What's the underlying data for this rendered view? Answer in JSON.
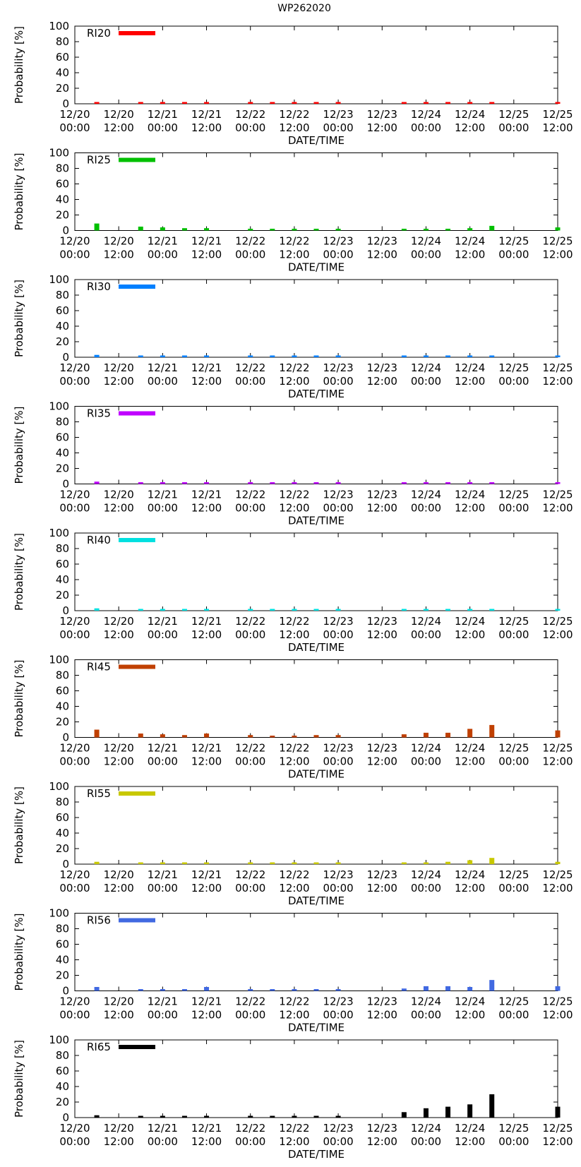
{
  "title": "WP262020",
  "x_tick_labels": [
    {
      "date": "12/20",
      "time": "00:00"
    },
    {
      "date": "12/20",
      "time": "12:00"
    },
    {
      "date": "12/21",
      "time": "00:00"
    },
    {
      "date": "12/21",
      "time": "12:00"
    },
    {
      "date": "12/22",
      "time": "00:00"
    },
    {
      "date": "12/22",
      "time": "12:00"
    },
    {
      "date": "12/23",
      "time": "00:00"
    },
    {
      "date": "12/23",
      "time": "12:00"
    },
    {
      "date": "12/24",
      "time": "00:00"
    },
    {
      "date": "12/24",
      "time": "12:00"
    },
    {
      "date": "12/25",
      "time": "00:00"
    },
    {
      "date": "12/25",
      "time": "12:00"
    }
  ],
  "chart_data": [
    {
      "type": "bar",
      "name": "RI20",
      "color": "#ff0000",
      "title": "RI20",
      "xlabel": "DATE/TIME",
      "ylabel": "Probability [%]",
      "ylim": [
        0,
        100
      ],
      "yticks": [
        0,
        20,
        40,
        60,
        80,
        100
      ],
      "x_hours": [
        6,
        18,
        24,
        30,
        36,
        48,
        54,
        60,
        66,
        72,
        90,
        96,
        102,
        108,
        114,
        132
      ],
      "values": [
        1,
        1,
        1,
        0,
        1,
        0,
        0,
        0,
        0,
        0,
        0,
        0,
        0,
        0,
        0,
        0
      ]
    },
    {
      "type": "bar",
      "name": "RI25",
      "color": "#00c000",
      "title": "RI25",
      "xlabel": "DATE/TIME",
      "ylabel": "Probability [%]",
      "ylim": [
        0,
        100
      ],
      "yticks": [
        0,
        20,
        40,
        60,
        80,
        100
      ],
      "x_hours": [
        6,
        18,
        24,
        30,
        36,
        48,
        54,
        60,
        66,
        72,
        90,
        96,
        102,
        108,
        114,
        132
      ],
      "values": [
        9,
        5,
        4,
        3,
        3,
        1,
        1,
        1,
        1,
        1,
        2,
        2,
        2,
        3,
        6,
        4
      ]
    },
    {
      "type": "bar",
      "name": "RI30",
      "color": "#0080ff",
      "title": "RI30",
      "xlabel": "DATE/TIME",
      "ylabel": "Probability [%]",
      "ylim": [
        0,
        100
      ],
      "yticks": [
        0,
        20,
        40,
        60,
        80,
        100
      ],
      "x_hours": [
        6,
        18,
        24,
        30,
        36,
        48,
        54,
        60,
        66,
        72,
        90,
        96,
        102,
        108,
        114,
        132
      ],
      "values": [
        3,
        1,
        1,
        1,
        1,
        0,
        0,
        0,
        0,
        0,
        0,
        1,
        0,
        1,
        2,
        2
      ]
    },
    {
      "type": "bar",
      "name": "RI35",
      "color": "#c000ff",
      "title": "RI35",
      "xlabel": "DATE/TIME",
      "ylabel": "Probability [%]",
      "ylim": [
        0,
        100
      ],
      "yticks": [
        0,
        20,
        40,
        60,
        80,
        100
      ],
      "x_hours": [
        6,
        18,
        24,
        30,
        36,
        48,
        54,
        60,
        66,
        72,
        90,
        96,
        102,
        108,
        114,
        132
      ],
      "values": [
        3,
        1,
        1,
        0,
        1,
        0,
        0,
        0,
        0,
        0,
        0,
        0,
        0,
        1,
        1,
        1
      ]
    },
    {
      "type": "bar",
      "name": "RI40",
      "color": "#00e0e0",
      "title": "RI40",
      "xlabel": "DATE/TIME",
      "ylabel": "Probability [%]",
      "ylim": [
        0,
        100
      ],
      "yticks": [
        0,
        20,
        40,
        60,
        80,
        100
      ],
      "x_hours": [
        6,
        18,
        24,
        30,
        36,
        48,
        54,
        60,
        66,
        72,
        90,
        96,
        102,
        108,
        114,
        132
      ],
      "values": [
        3,
        1,
        1,
        0,
        0,
        0,
        0,
        0,
        0,
        0,
        0,
        0,
        0,
        0,
        1,
        1
      ]
    },
    {
      "type": "bar",
      "name": "RI45",
      "color": "#c04000",
      "title": "RI45",
      "xlabel": "DATE/TIME",
      "ylabel": "Probability [%]",
      "ylim": [
        0,
        100
      ],
      "yticks": [
        0,
        20,
        40,
        60,
        80,
        100
      ],
      "x_hours": [
        6,
        18,
        24,
        30,
        36,
        48,
        54,
        60,
        66,
        72,
        90,
        96,
        102,
        108,
        114,
        132
      ],
      "values": [
        10,
        5,
        4,
        3,
        5,
        3,
        2,
        2,
        3,
        3,
        4,
        6,
        6,
        11,
        16,
        9
      ]
    },
    {
      "type": "bar",
      "name": "RI55",
      "color": "#c8c800",
      "title": "RI55",
      "xlabel": "DATE/TIME",
      "ylabel": "Probability [%]",
      "ylim": [
        0,
        100
      ],
      "yticks": [
        0,
        20,
        40,
        60,
        80,
        100
      ],
      "x_hours": [
        6,
        18,
        24,
        30,
        36,
        48,
        54,
        60,
        66,
        72,
        90,
        96,
        102,
        108,
        114,
        132
      ],
      "values": [
        3,
        1,
        1,
        1,
        1,
        1,
        1,
        1,
        1,
        1,
        1,
        1,
        3,
        5,
        8,
        3
      ]
    },
    {
      "type": "bar",
      "name": "RI56",
      "color": "#4169e1",
      "title": "RI56",
      "xlabel": "DATE/TIME",
      "ylabel": "Probability [%]",
      "ylim": [
        0,
        100
      ],
      "yticks": [
        0,
        20,
        40,
        60,
        80,
        100
      ],
      "x_hours": [
        6,
        18,
        24,
        30,
        36,
        48,
        54,
        60,
        66,
        72,
        90,
        96,
        102,
        108,
        114,
        132
      ],
      "values": [
        5,
        1,
        1,
        1,
        5,
        1,
        1,
        1,
        1,
        1,
        3,
        6,
        6,
        5,
        14,
        6
      ]
    },
    {
      "type": "bar",
      "name": "RI65",
      "color": "#000000",
      "title": "RI65",
      "xlabel": "DATE/TIME",
      "ylabel": "Probability [%]",
      "ylim": [
        0,
        100
      ],
      "yticks": [
        0,
        20,
        40,
        60,
        80,
        100
      ],
      "x_hours": [
        6,
        18,
        24,
        30,
        36,
        48,
        54,
        60,
        66,
        72,
        90,
        96,
        102,
        108,
        114,
        132
      ],
      "values": [
        3,
        1,
        1,
        1,
        1,
        1,
        1,
        1,
        2,
        2,
        7,
        12,
        14,
        17,
        30,
        14
      ]
    }
  ]
}
